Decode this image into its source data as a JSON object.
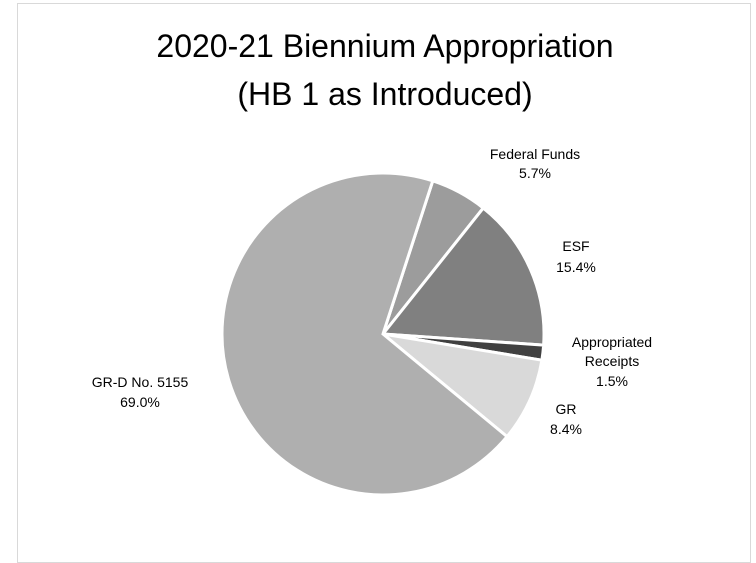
{
  "chart_data": {
    "type": "pie",
    "title": "2020-21 Biennium Appropriation (HB 1 as Introduced)",
    "categories": [
      "Federal Funds",
      "ESF",
      "Appropriated Receipts",
      "GR",
      "GR-D No. 5155"
    ],
    "values": [
      5.7,
      15.4,
      1.5,
      8.4,
      69.0
    ],
    "value_labels": [
      "5.7%",
      "15.4%",
      "1.5%",
      "8.4%",
      "69.0%"
    ],
    "colors": [
      "#9c9c9c",
      "#808080",
      "#404040",
      "#d9d9d9",
      "#afafaf"
    ]
  }
}
